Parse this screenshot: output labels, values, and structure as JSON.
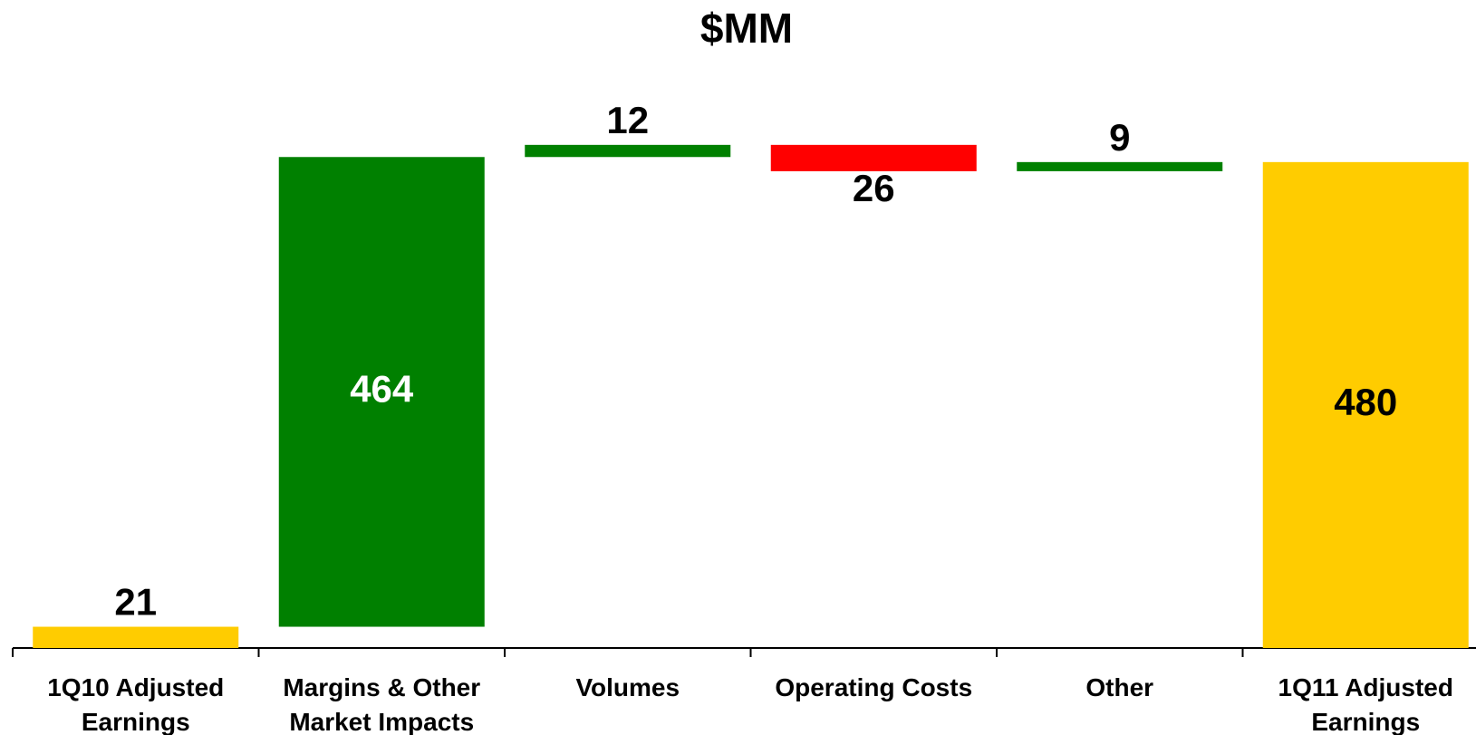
{
  "chart_data": {
    "type": "waterfall",
    "title": "$MM",
    "categories": [
      "1Q10 Adjusted Earnings",
      "Margins & Other Market Impacts",
      "Volumes",
      "Operating Costs",
      "Other",
      "1Q11 Adjusted Earnings"
    ],
    "values": [
      21,
      464,
      12,
      -26,
      9,
      480
    ],
    "value_labels": [
      "21",
      "464",
      "12",
      "26",
      "9",
      "480"
    ],
    "colors": [
      "#ffcc00",
      "#008000",
      "#008000",
      "#ff0000",
      "#008000",
      "#ffcc00"
    ]
  }
}
